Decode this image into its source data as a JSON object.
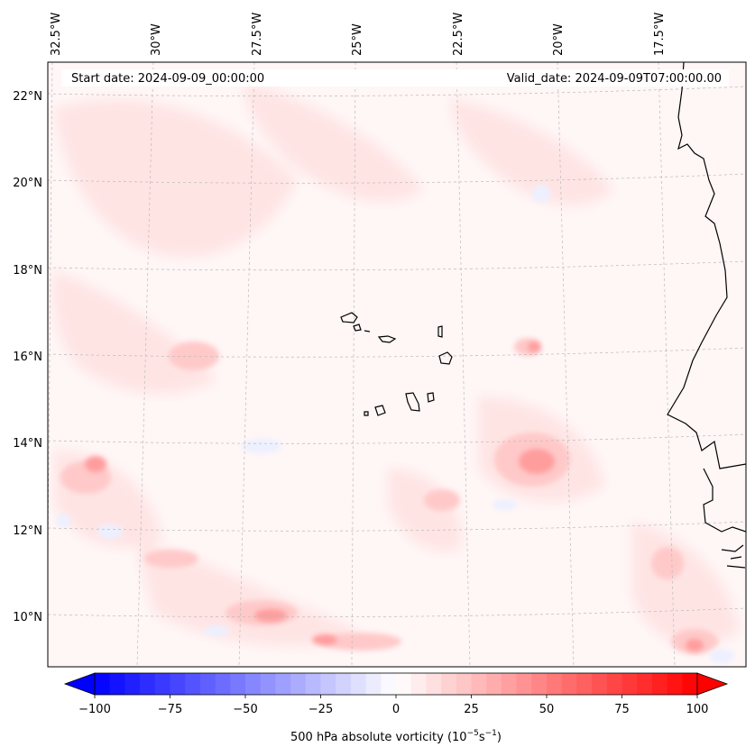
{
  "header": {
    "start_date": "Start date: 2024-09-09_00:00:00",
    "valid_date": "Valid_date: 2024-09-09T07:00:00.00"
  },
  "lon_labels": [
    "32.5°W",
    "30°W",
    "27.5°W",
    "25°W",
    "22.5°W",
    "20°W",
    "17.5°W"
  ],
  "lat_labels": [
    "22°N",
    "20°N",
    "18°N",
    "16°N",
    "14°N",
    "12°N",
    "10°N"
  ],
  "colorbar": {
    "label": "500 hPa absolute vorticity (10",
    "label_exp1": "−5",
    "label_mid": "s",
    "label_exp2": "−1",
    "label_end": ")",
    "ticks": [
      "−100",
      "−75",
      "−50",
      "−25",
      "0",
      "25",
      "50",
      "75",
      "100"
    ],
    "colors": {
      "min": "#0000ff",
      "mid": "#ffffff",
      "max": "#ff0000"
    }
  },
  "map_style": {
    "coastline": "#000000",
    "gridline": "#bbbbbb"
  }
}
